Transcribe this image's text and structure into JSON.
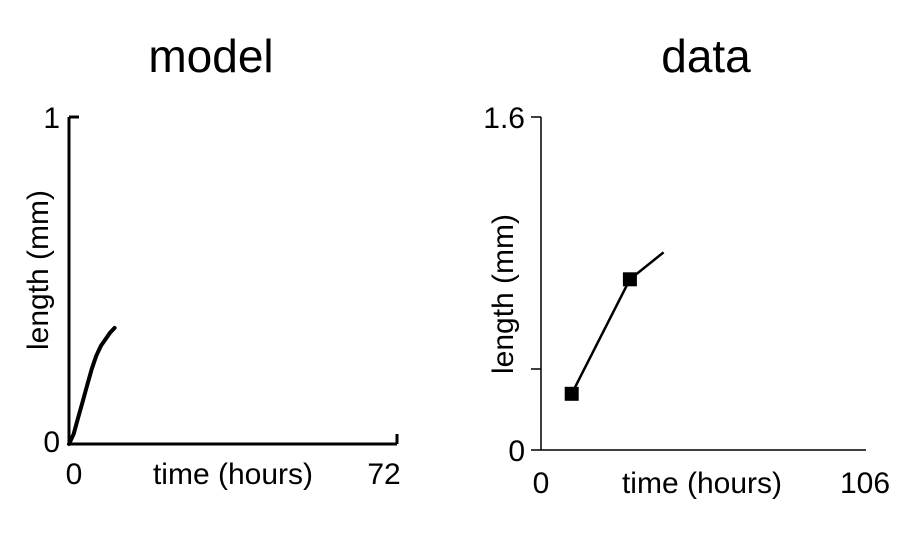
{
  "chart_data": [
    {
      "type": "line",
      "title": "model",
      "xlabel": "time (hours)",
      "ylabel": "length (mm)",
      "xlim": [
        0,
        72
      ],
      "ylim": [
        0,
        1
      ],
      "x_tick_labels": [
        "0",
        "72"
      ],
      "y_tick_labels": [
        "0",
        "1"
      ],
      "series": [
        {
          "color": "#000000",
          "x": [
            0,
            1,
            2,
            3,
            4,
            5,
            6,
            7,
            8,
            9,
            10
          ],
          "y": [
            0,
            0.03,
            0.08,
            0.13,
            0.18,
            0.23,
            0.27,
            0.3,
            0.32,
            0.34,
            0.355
          ]
        }
      ]
    },
    {
      "type": "line",
      "title": "data",
      "xlabel": "time (hours)",
      "ylabel": "length (mm)",
      "xlim": [
        0,
        106
      ],
      "ylim": [
        0,
        1.6
      ],
      "x_tick_labels": [
        "0",
        "106"
      ],
      "y_tick_labels": [
        "0",
        "1.6"
      ],
      "series": [
        {
          "color": "#000000",
          "markers": "square",
          "x": [
            10,
            29
          ],
          "y": [
            0.27,
            0.82
          ],
          "extension_x": [
            40
          ],
          "extension_y": [
            0.95
          ]
        }
      ]
    }
  ]
}
